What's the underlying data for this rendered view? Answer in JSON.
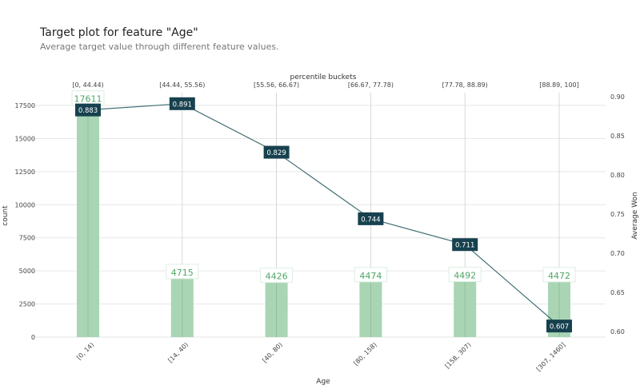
{
  "header": {
    "title": "Target plot for feature \"Age\"",
    "subtitle": "Average target value through different feature values."
  },
  "chart_data": {
    "type": "bar+line",
    "xlabel": "Age",
    "ylabel": "count",
    "y2label": "Average Won",
    "top_axis_label": "percentile buckets",
    "categories": [
      "[0, 14)",
      "[14, 40)",
      "[40, 80)",
      "[80, 158)",
      "[158, 307)",
      "[307, 1460]"
    ],
    "top_categories": [
      "[0, 44.44)",
      "[44.44, 55.56)",
      "[55.56, 66.67)",
      "[66.67, 77.78)",
      "[77.78, 88.89)",
      "[88.89, 100]"
    ],
    "series": [
      {
        "name": "count",
        "kind": "bar",
        "axis": "left",
        "values": [
          17611,
          4715,
          4426,
          4474,
          4492,
          4472
        ]
      },
      {
        "name": "Average Won",
        "kind": "line",
        "axis": "right",
        "values": [
          0.883,
          0.891,
          0.829,
          0.744,
          0.711,
          0.607
        ]
      }
    ],
    "ylim": [
      0,
      17500
    ],
    "yticks": [
      "0",
      "2500",
      "5000",
      "7500",
      "10000",
      "12500",
      "15000",
      "17500"
    ],
    "y2lim": [
      0.6,
      0.9
    ],
    "y2ticks": [
      "0.60",
      "0.65",
      "0.70",
      "0.75",
      "0.80",
      "0.85",
      "0.90"
    ],
    "grid": true,
    "colors": {
      "bar": "#a9d5b4",
      "bar_label": "#4fa566",
      "line": "#3f6f73",
      "marker_box": "#17414f"
    }
  }
}
